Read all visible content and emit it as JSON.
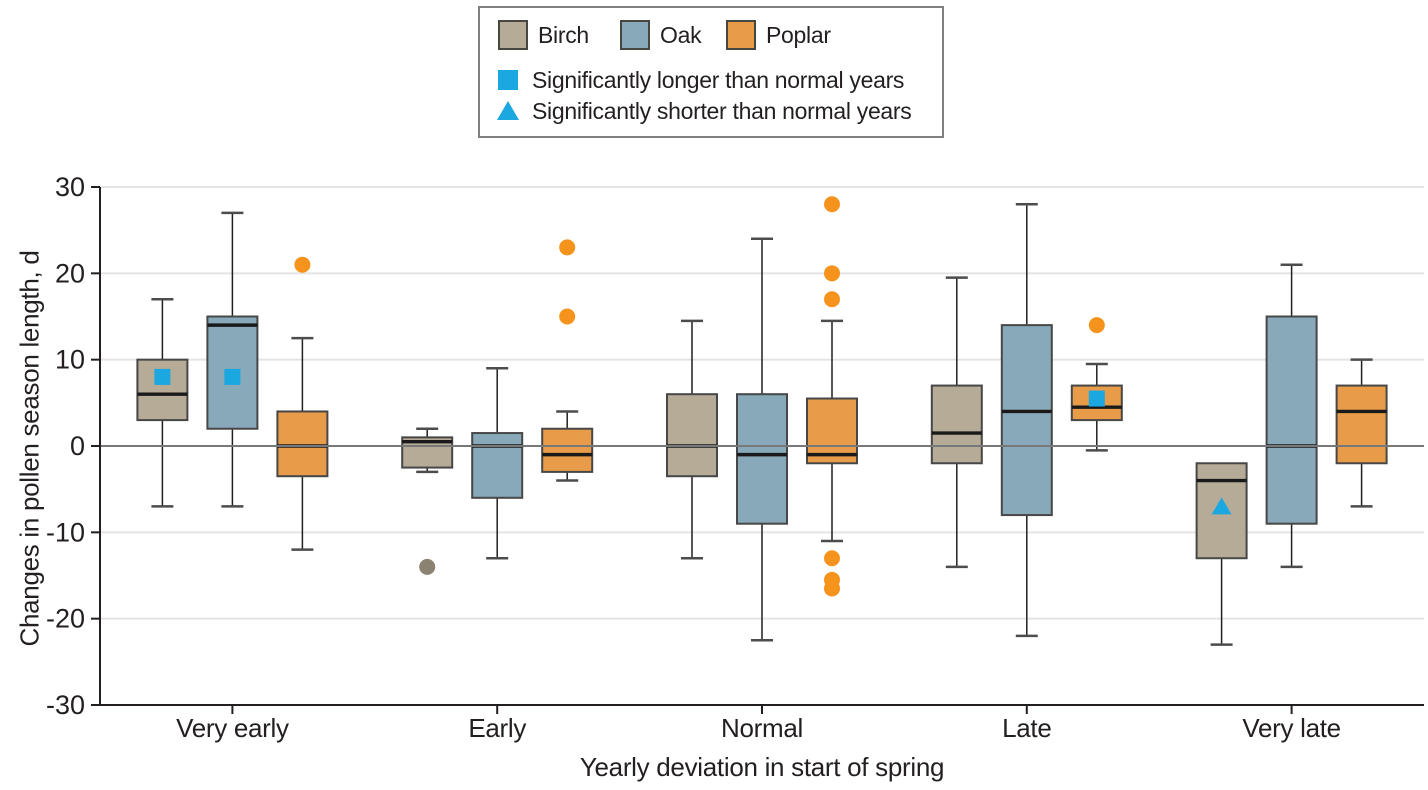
{
  "chart_data": {
    "type": "boxplot",
    "xlabel": "Yearly deviation in start of spring",
    "ylabel": "Changes in pollen season length, d",
    "ylim": [
      -30,
      30
    ],
    "yticks": [
      30,
      20,
      10,
      0,
      -10,
      -20,
      -30
    ],
    "categories": [
      "Very early",
      "Early",
      "Normal",
      "Late",
      "Very late"
    ],
    "legend_position": "top-center",
    "grid": "horizontal",
    "legend": {
      "longer": "Significantly longer than normal years",
      "shorter": "Significantly shorter than normal years"
    },
    "colors": {
      "significant": "#1ba7e0",
      "grid_line": "#e4e4e4",
      "zero_line": "#77787a",
      "axis": "#231f20",
      "text": "#231f20",
      "box_stroke": "#474747",
      "median": "#1a1a1a",
      "legend_border": "#808080"
    },
    "series": [
      {
        "name": "Birch",
        "color": "#b5ab96",
        "outlier_color": "#8c8271",
        "boxes": [
          {
            "category": "Very early",
            "low": -7,
            "q1": 3,
            "median": 6,
            "q3": 10,
            "high": 17,
            "outliers": [],
            "significant": {
              "marker": "square",
              "value": 8
            }
          },
          {
            "category": "Early",
            "low": -3,
            "q1": -2.5,
            "median": 0.5,
            "q3": 1,
            "high": 2,
            "outliers": [
              -14
            ],
            "significant": null
          },
          {
            "category": "Normal",
            "low": -13,
            "q1": -3.5,
            "median": 0,
            "q3": 6,
            "high": 14.5,
            "outliers": [],
            "significant": null
          },
          {
            "category": "Late",
            "low": -14,
            "q1": -2,
            "median": 1.5,
            "q3": 7,
            "high": 19.5,
            "outliers": [],
            "significant": null
          },
          {
            "category": "Very late",
            "low": -23,
            "q1": -13,
            "median": -4,
            "q3": -2,
            "high": -2,
            "outliers": [],
            "significant": {
              "marker": "triangle",
              "value": -7
            }
          }
        ]
      },
      {
        "name": "Oak",
        "color": "#87a9b9",
        "outlier_color": "#87a9b9",
        "boxes": [
          {
            "category": "Very early",
            "low": -7,
            "q1": 2,
            "median": 14,
            "q3": 15,
            "high": 27,
            "outliers": [],
            "significant": {
              "marker": "square",
              "value": 8
            }
          },
          {
            "category": "Early",
            "low": -13,
            "q1": -6,
            "median": 0,
            "q3": 1.5,
            "high": 9,
            "outliers": [],
            "significant": null
          },
          {
            "category": "Normal",
            "low": -22.5,
            "q1": -9,
            "median": -1,
            "q3": 6,
            "high": 24,
            "outliers": [],
            "significant": null
          },
          {
            "category": "Late",
            "low": -22,
            "q1": -8,
            "median": 4,
            "q3": 14,
            "high": 28,
            "outliers": [],
            "significant": null
          },
          {
            "category": "Very late",
            "low": -14,
            "q1": -9,
            "median": 0,
            "q3": 15,
            "high": 21,
            "outliers": [],
            "significant": null
          }
        ]
      },
      {
        "name": "Poplar",
        "color": "#e89c4a",
        "outlier_color": "#f5931d",
        "boxes": [
          {
            "category": "Very early",
            "low": -12,
            "q1": -3.5,
            "median": 0,
            "q3": 4,
            "high": 12.5,
            "outliers": [
              21
            ],
            "significant": null
          },
          {
            "category": "Early",
            "low": -4,
            "q1": -3,
            "median": -1,
            "q3": 2,
            "high": 4,
            "outliers": [
              23,
              15
            ],
            "significant": null
          },
          {
            "category": "Normal",
            "low": -11,
            "q1": -2,
            "median": -1,
            "q3": 5.5,
            "high": 14.5,
            "outliers": [
              28,
              20,
              17,
              -13,
              -15.5,
              -16.5
            ],
            "significant": null
          },
          {
            "category": "Late",
            "low": -0.5,
            "q1": 3,
            "median": 4.5,
            "q3": 7,
            "high": 9.5,
            "outliers": [
              14
            ],
            "significant": {
              "marker": "square",
              "value": 5.5
            }
          },
          {
            "category": "Very late",
            "low": -7,
            "q1": -2,
            "median": 4,
            "q3": 7,
            "high": 10,
            "outliers": [],
            "significant": null
          }
        ]
      }
    ]
  }
}
